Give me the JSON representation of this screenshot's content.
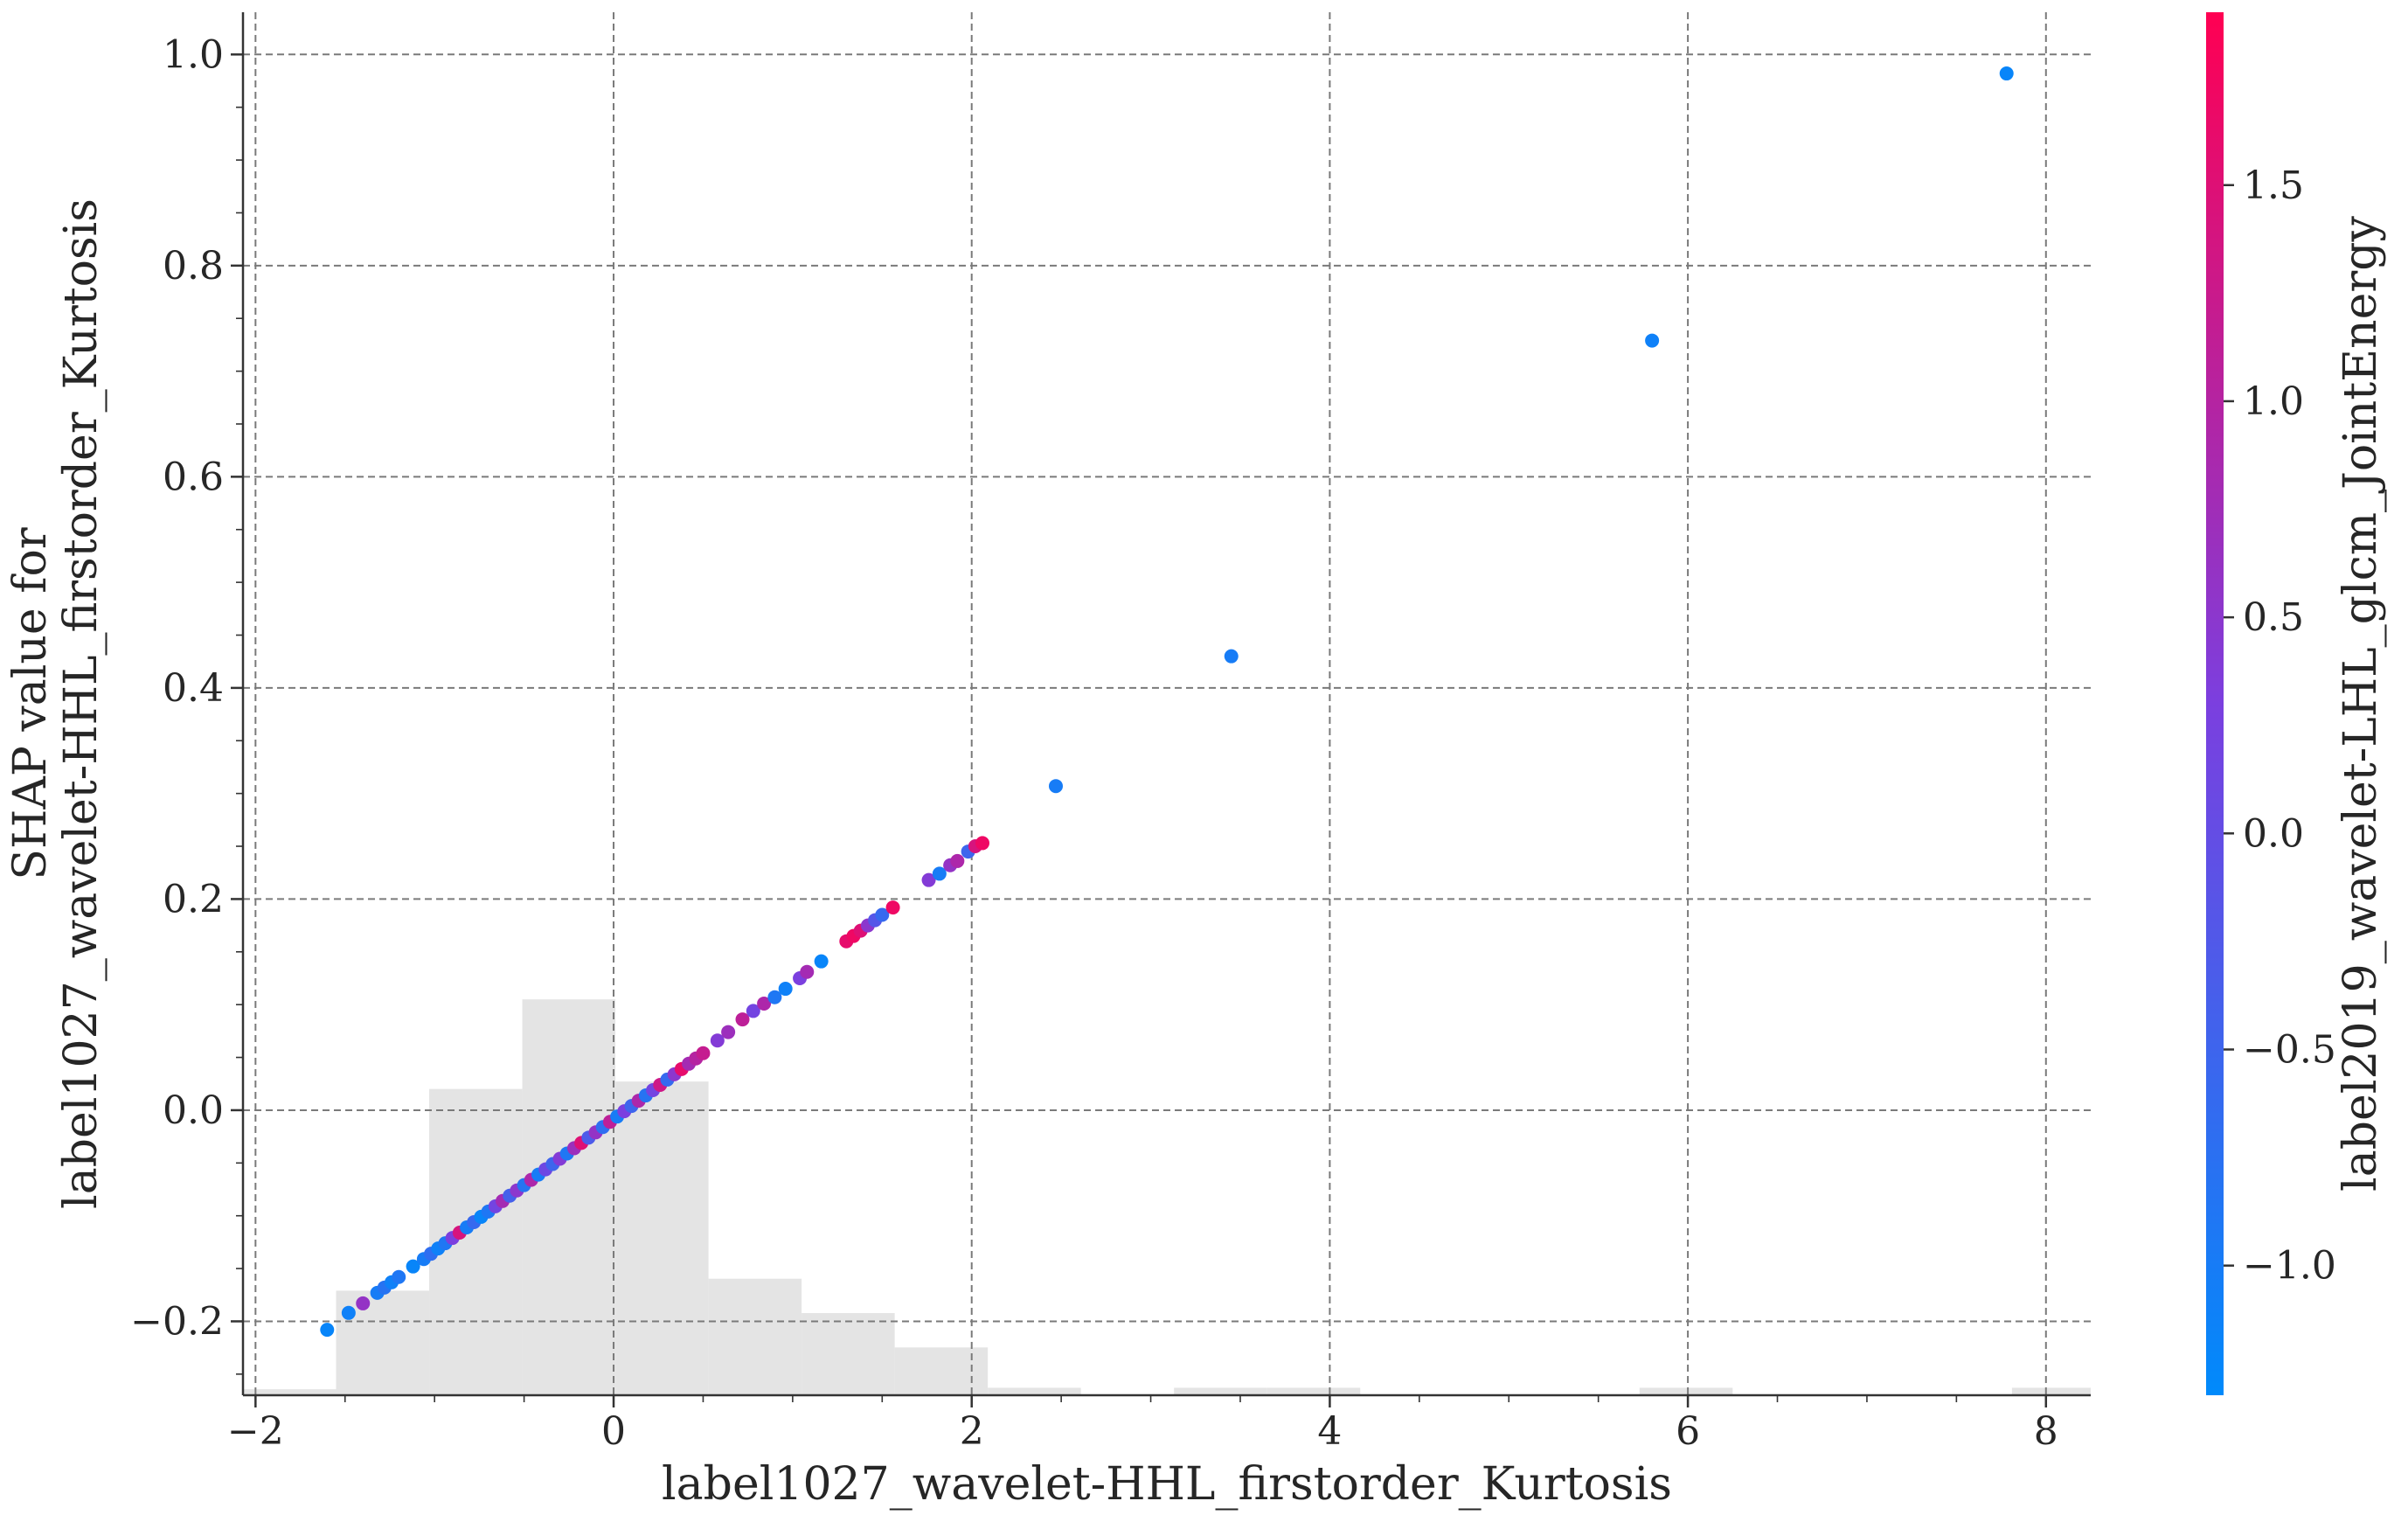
{
  "chart_data": {
    "type": "scatter",
    "xlabel": "label1027_wavelet-HHL_firstorder_Kurtosis",
    "ylabel": "SHAP value for\nlabel1027_wavelet-HHL_firstorder_Kurtosis",
    "xlim": [
      -2.07,
      8.25
    ],
    "ylim": [
      -0.27,
      1.04
    ],
    "x_ticks": [
      -2,
      0,
      2,
      4,
      6,
      8
    ],
    "x_tick_labels": [
      "−2",
      "0",
      "2",
      "4",
      "6",
      "8"
    ],
    "y_ticks": [
      -0.2,
      0.0,
      0.2,
      0.4,
      0.6,
      0.8,
      1.0
    ],
    "y_tick_labels": [
      "−0.2",
      "0.0",
      "0.2",
      "0.4",
      "0.6",
      "0.8",
      "1.0"
    ],
    "grid": true,
    "colorbar": {
      "label": "label2019_wavelet-LHL_glcm_JointEnergy",
      "range": [
        -1.3,
        1.9
      ],
      "ticks": [
        -1.0,
        -0.5,
        0.0,
        0.5,
        1.0,
        1.5
      ],
      "tick_labels": [
        "−1.0",
        "−0.5",
        "0.0",
        "0.5",
        "1.0",
        "1.5"
      ],
      "colors": [
        "#008afb",
        "#7b3fdf",
        "#ff0052"
      ]
    },
    "histogram": {
      "bin_edges": [
        -2.07,
        -1.55,
        -1.03,
        -0.51,
        0.01,
        0.53,
        1.05,
        1.57,
        2.09,
        2.61,
        3.13,
        3.65,
        4.17,
        4.69,
        5.21,
        5.73,
        6.25,
        6.77,
        7.29,
        7.81,
        8.25
      ],
      "counts": [
        0.4,
        7,
        20.5,
        26.5,
        21,
        7.8,
        5.5,
        3.2,
        0.5,
        0,
        0.5,
        0.5,
        0,
        0,
        0,
        0.5,
        0,
        0,
        0,
        0.5
      ]
    },
    "points": [
      {
        "x": -1.6,
        "y": -0.208,
        "c": -1.2
      },
      {
        "x": -1.48,
        "y": -0.192,
        "c": -1.1
      },
      {
        "x": -1.4,
        "y": -0.183,
        "c": 0.6
      },
      {
        "x": -1.32,
        "y": -0.173,
        "c": -1.0
      },
      {
        "x": -1.28,
        "y": -0.168,
        "c": -0.8
      },
      {
        "x": -1.24,
        "y": -0.163,
        "c": -1.1
      },
      {
        "x": -1.2,
        "y": -0.158,
        "c": -0.9
      },
      {
        "x": -1.12,
        "y": -0.148,
        "c": -1.2
      },
      {
        "x": -1.06,
        "y": -0.141,
        "c": -1.0
      },
      {
        "x": -1.02,
        "y": -0.136,
        "c": -0.7
      },
      {
        "x": -0.98,
        "y": -0.131,
        "c": -1.1
      },
      {
        "x": -0.94,
        "y": -0.126,
        "c": -0.9
      },
      {
        "x": -0.9,
        "y": -0.121,
        "c": 0.3
      },
      {
        "x": -0.86,
        "y": -0.116,
        "c": 1.4
      },
      {
        "x": -0.82,
        "y": -0.111,
        "c": -1.0
      },
      {
        "x": -0.78,
        "y": -0.106,
        "c": -0.6
      },
      {
        "x": -0.74,
        "y": -0.101,
        "c": -1.2
      },
      {
        "x": -0.7,
        "y": -0.096,
        "c": -0.9
      },
      {
        "x": -0.66,
        "y": -0.091,
        "c": 0.2
      },
      {
        "x": -0.62,
        "y": -0.086,
        "c": 0.8
      },
      {
        "x": -0.58,
        "y": -0.081,
        "c": -0.4
      },
      {
        "x": -0.54,
        "y": -0.076,
        "c": 0.5
      },
      {
        "x": -0.5,
        "y": -0.071,
        "c": -0.8
      },
      {
        "x": -0.46,
        "y": -0.066,
        "c": 0.9
      },
      {
        "x": -0.42,
        "y": -0.061,
        "c": -1.0
      },
      {
        "x": -0.38,
        "y": -0.056,
        "c": 0.1
      },
      {
        "x": -0.34,
        "y": -0.051,
        "c": -0.5
      },
      {
        "x": -0.3,
        "y": -0.046,
        "c": 0.4
      },
      {
        "x": -0.26,
        "y": -0.041,
        "c": -0.9
      },
      {
        "x": -0.22,
        "y": -0.036,
        "c": 0.7
      },
      {
        "x": -0.18,
        "y": -0.031,
        "c": 1.5
      },
      {
        "x": -0.14,
        "y": -0.026,
        "c": -0.3
      },
      {
        "x": -0.1,
        "y": -0.021,
        "c": 0.6
      },
      {
        "x": -0.06,
        "y": -0.016,
        "c": -0.7
      },
      {
        "x": -0.02,
        "y": -0.011,
        "c": 1.1
      },
      {
        "x": 0.02,
        "y": -0.006,
        "c": -1.0
      },
      {
        "x": 0.06,
        "y": -0.001,
        "c": 0.3
      },
      {
        "x": 0.1,
        "y": 0.004,
        "c": -0.5
      },
      {
        "x": 0.14,
        "y": 0.009,
        "c": 0.9
      },
      {
        "x": 0.18,
        "y": 0.014,
        "c": -0.8
      },
      {
        "x": 0.22,
        "y": 0.019,
        "c": 0.2
      },
      {
        "x": 0.26,
        "y": 0.024,
        "c": 1.3
      },
      {
        "x": 0.3,
        "y": 0.029,
        "c": -0.6
      },
      {
        "x": 0.34,
        "y": 0.034,
        "c": 0.5
      },
      {
        "x": 0.38,
        "y": 0.039,
        "c": 1.6
      },
      {
        "x": 0.42,
        "y": 0.044,
        "c": 0.8
      },
      {
        "x": 0.46,
        "y": 0.049,
        "c": 1.0
      },
      {
        "x": 0.5,
        "y": 0.054,
        "c": 1.2
      },
      {
        "x": 0.58,
        "y": 0.066,
        "c": 0.4
      },
      {
        "x": 0.64,
        "y": 0.074,
        "c": 0.7
      },
      {
        "x": 0.72,
        "y": 0.086,
        "c": 1.1
      },
      {
        "x": 0.78,
        "y": 0.094,
        "c": 0.2
      },
      {
        "x": 0.84,
        "y": 0.101,
        "c": 0.9
      },
      {
        "x": 0.9,
        "y": 0.107,
        "c": -0.9
      },
      {
        "x": 0.96,
        "y": 0.115,
        "c": -1.1
      },
      {
        "x": 1.04,
        "y": 0.125,
        "c": 0.3
      },
      {
        "x": 1.08,
        "y": 0.131,
        "c": 0.8
      },
      {
        "x": 1.16,
        "y": 0.141,
        "c": -1.2
      },
      {
        "x": 1.3,
        "y": 0.16,
        "c": 1.6
      },
      {
        "x": 1.34,
        "y": 0.165,
        "c": 1.7
      },
      {
        "x": 1.38,
        "y": 0.17,
        "c": 1.5
      },
      {
        "x": 1.42,
        "y": 0.175,
        "c": 0.5
      },
      {
        "x": 1.46,
        "y": 0.18,
        "c": -0.2
      },
      {
        "x": 1.5,
        "y": 0.185,
        "c": -0.6
      },
      {
        "x": 1.56,
        "y": 0.192,
        "c": 1.7
      },
      {
        "x": 1.76,
        "y": 0.218,
        "c": 0.4
      },
      {
        "x": 1.82,
        "y": 0.224,
        "c": -1.0
      },
      {
        "x": 1.88,
        "y": 0.232,
        "c": 0.6
      },
      {
        "x": 1.92,
        "y": 0.236,
        "c": 0.9
      },
      {
        "x": 1.98,
        "y": 0.245,
        "c": -0.5
      },
      {
        "x": 2.02,
        "y": 0.25,
        "c": 1.4
      },
      {
        "x": 2.06,
        "y": 0.253,
        "c": 1.7
      },
      {
        "x": 2.47,
        "y": 0.307,
        "c": -1.0
      },
      {
        "x": 3.45,
        "y": 0.43,
        "c": -1.0
      },
      {
        "x": 5.8,
        "y": 0.729,
        "c": -1.1
      },
      {
        "x": 7.78,
        "y": 0.982,
        "c": -1.2
      }
    ]
  }
}
